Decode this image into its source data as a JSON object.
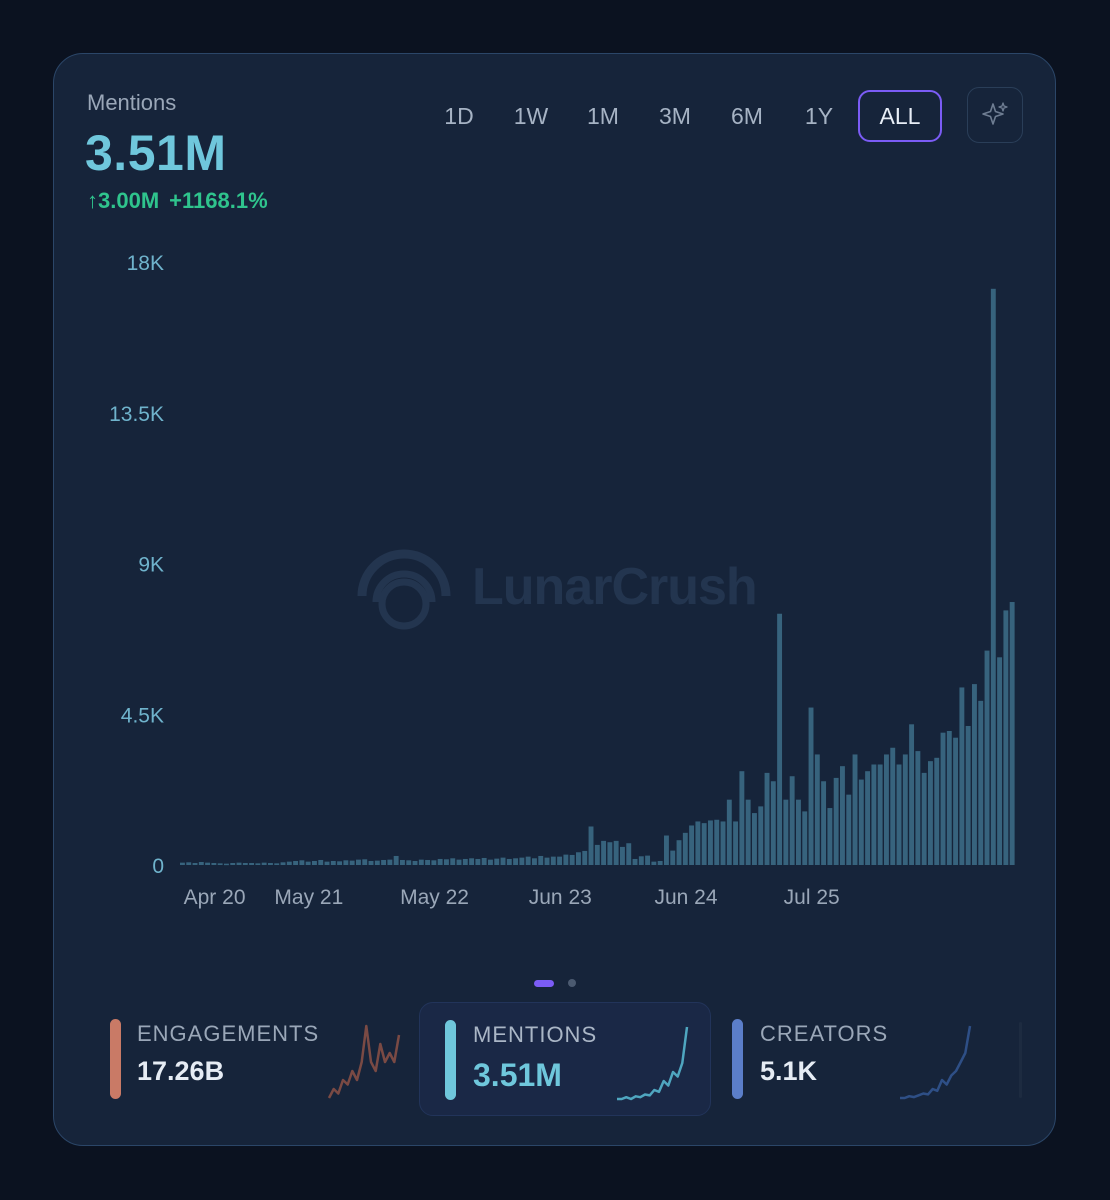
{
  "header": {
    "label": "Mentions",
    "value": "3.51M",
    "change_abs": "↑3.00M",
    "change_pct": "+1168.1%"
  },
  "ranges": [
    {
      "label": "1D",
      "active": false
    },
    {
      "label": "1W",
      "active": false
    },
    {
      "label": "1M",
      "active": false
    },
    {
      "label": "3M",
      "active": false
    },
    {
      "label": "6M",
      "active": false
    },
    {
      "label": "1Y",
      "active": false
    },
    {
      "label": "ALL",
      "active": true
    }
  ],
  "ai_button_icon": "sparkle-icon",
  "watermark": {
    "text": "LunarCrush",
    "icon": "lunarcrush-logo-icon"
  },
  "colors": {
    "bar": "#37637d",
    "accent": "#7b5cf5",
    "positive": "#2fc48d",
    "mentions": "#6fc7dc",
    "engagements": "#c97a66",
    "creators": "#5b7ec9"
  },
  "chart_data": {
    "type": "bar",
    "title": "",
    "xlabel": "",
    "ylabel": "",
    "ylim": [
      0,
      18000
    ],
    "y_ticks": [
      0,
      4500,
      9000,
      13500,
      18000
    ],
    "y_tick_labels": [
      "0",
      "4.5K",
      "9K",
      "13.5K",
      "18K"
    ],
    "x_tick_labels": [
      "Apr 20",
      "May 21",
      "May 22",
      "Jun 23",
      "Jun 24",
      "Jul 25"
    ],
    "x_tick_bar_index": [
      5,
      20,
      40,
      60,
      80,
      100
    ],
    "grid": false,
    "values": [
      70,
      80,
      60,
      90,
      70,
      60,
      50,
      40,
      60,
      70,
      60,
      60,
      50,
      70,
      60,
      50,
      80,
      100,
      120,
      140,
      100,
      120,
      150,
      100,
      120,
      110,
      140,
      130,
      160,
      170,
      120,
      130,
      150,
      160,
      270,
      150,
      140,
      120,
      160,
      150,
      140,
      180,
      170,
      200,
      160,
      180,
      200,
      180,
      210,
      160,
      190,
      220,
      180,
      200,
      220,
      250,
      200,
      270,
      220,
      250,
      250,
      310,
      300,
      380,
      420,
      1150,
      600,
      720,
      680,
      720,
      540,
      650,
      180,
      260,
      280,
      100,
      120,
      880,
      430,
      740,
      960,
      1180,
      1300,
      1250,
      1330,
      1350,
      1300,
      1950,
      1300,
      2800,
      1950,
      1550,
      1750,
      2750,
      2500,
      7500,
      1950,
      2650,
      1950,
      1600,
      4700,
      3300,
      2500,
      1700,
      2600,
      2950,
      2100,
      3300,
      2550,
      2800,
      3000,
      3000,
      3300,
      3500,
      3000,
      3300,
      4200,
      3400,
      2750,
      3100,
      3200,
      3950,
      4000,
      3800,
      5300,
      4150,
      5400,
      4900,
      6400,
      17200,
      6200,
      7600,
      7850
    ]
  },
  "tiles": [
    {
      "label": "ENGAGEMENTS",
      "value": "17.26B",
      "active": false,
      "spark": [
        1,
        2,
        1.5,
        3,
        2.5,
        4,
        3,
        5,
        9,
        5,
        4,
        7,
        5,
        6,
        5,
        8
      ]
    },
    {
      "label": "MENTIONS",
      "value": "3.51M",
      "active": true,
      "spark": [
        1,
        1,
        1.2,
        1,
        1.3,
        1.2,
        1.5,
        1.4,
        2,
        1.8,
        3,
        2.5,
        4,
        3.5,
        5,
        9
      ]
    },
    {
      "label": "CREATORS",
      "value": "5.1K",
      "active": false,
      "spark": [
        1,
        1,
        1.2,
        1.1,
        1.3,
        1.5,
        1.4,
        2,
        1.8,
        3,
        2.5,
        3.5,
        4,
        5,
        6,
        9
      ]
    }
  ]
}
